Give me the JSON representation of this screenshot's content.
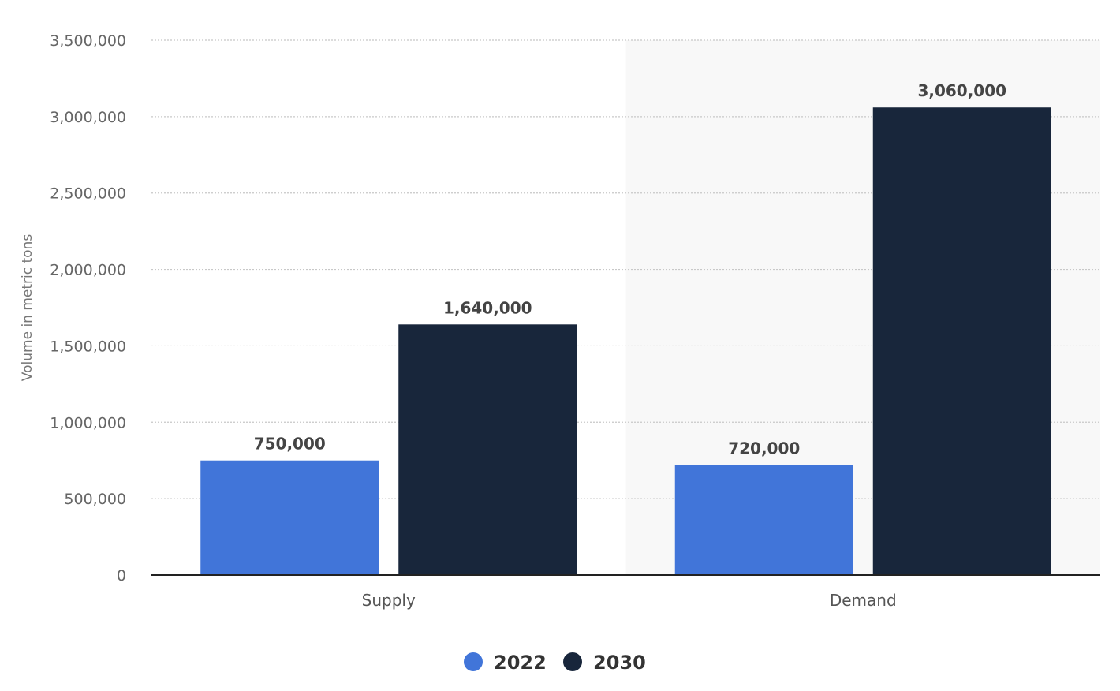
{
  "chart_data": {
    "type": "bar",
    "categories": [
      "Supply",
      "Demand"
    ],
    "series": [
      {
        "name": "2022",
        "values": [
          750000,
          720000
        ],
        "color": "#4175d9",
        "value_labels": [
          "750,000",
          "720,000"
        ]
      },
      {
        "name": "2030",
        "values": [
          1640000,
          3060000
        ],
        "color": "#18263b",
        "value_labels": [
          "1,640,000",
          "3,060,000"
        ]
      }
    ],
    "title": "",
    "xlabel": "",
    "ylabel": "Volume in metric tons",
    "ylim": [
      0,
      3500000
    ],
    "yticks": [
      0,
      500000,
      1000000,
      1500000,
      2000000,
      2500000,
      3000000,
      3500000
    ],
    "ytick_labels": [
      "0",
      "500,000",
      "1,000,000",
      "1,500,000",
      "2,000,000",
      "2,500,000",
      "3,000,000",
      "3,500,000"
    ],
    "grid": true,
    "grid_style": "dotted",
    "highlighted_category": "Demand",
    "highlight_color": "#f8f8f8",
    "legend_position": "bottom-center"
  }
}
